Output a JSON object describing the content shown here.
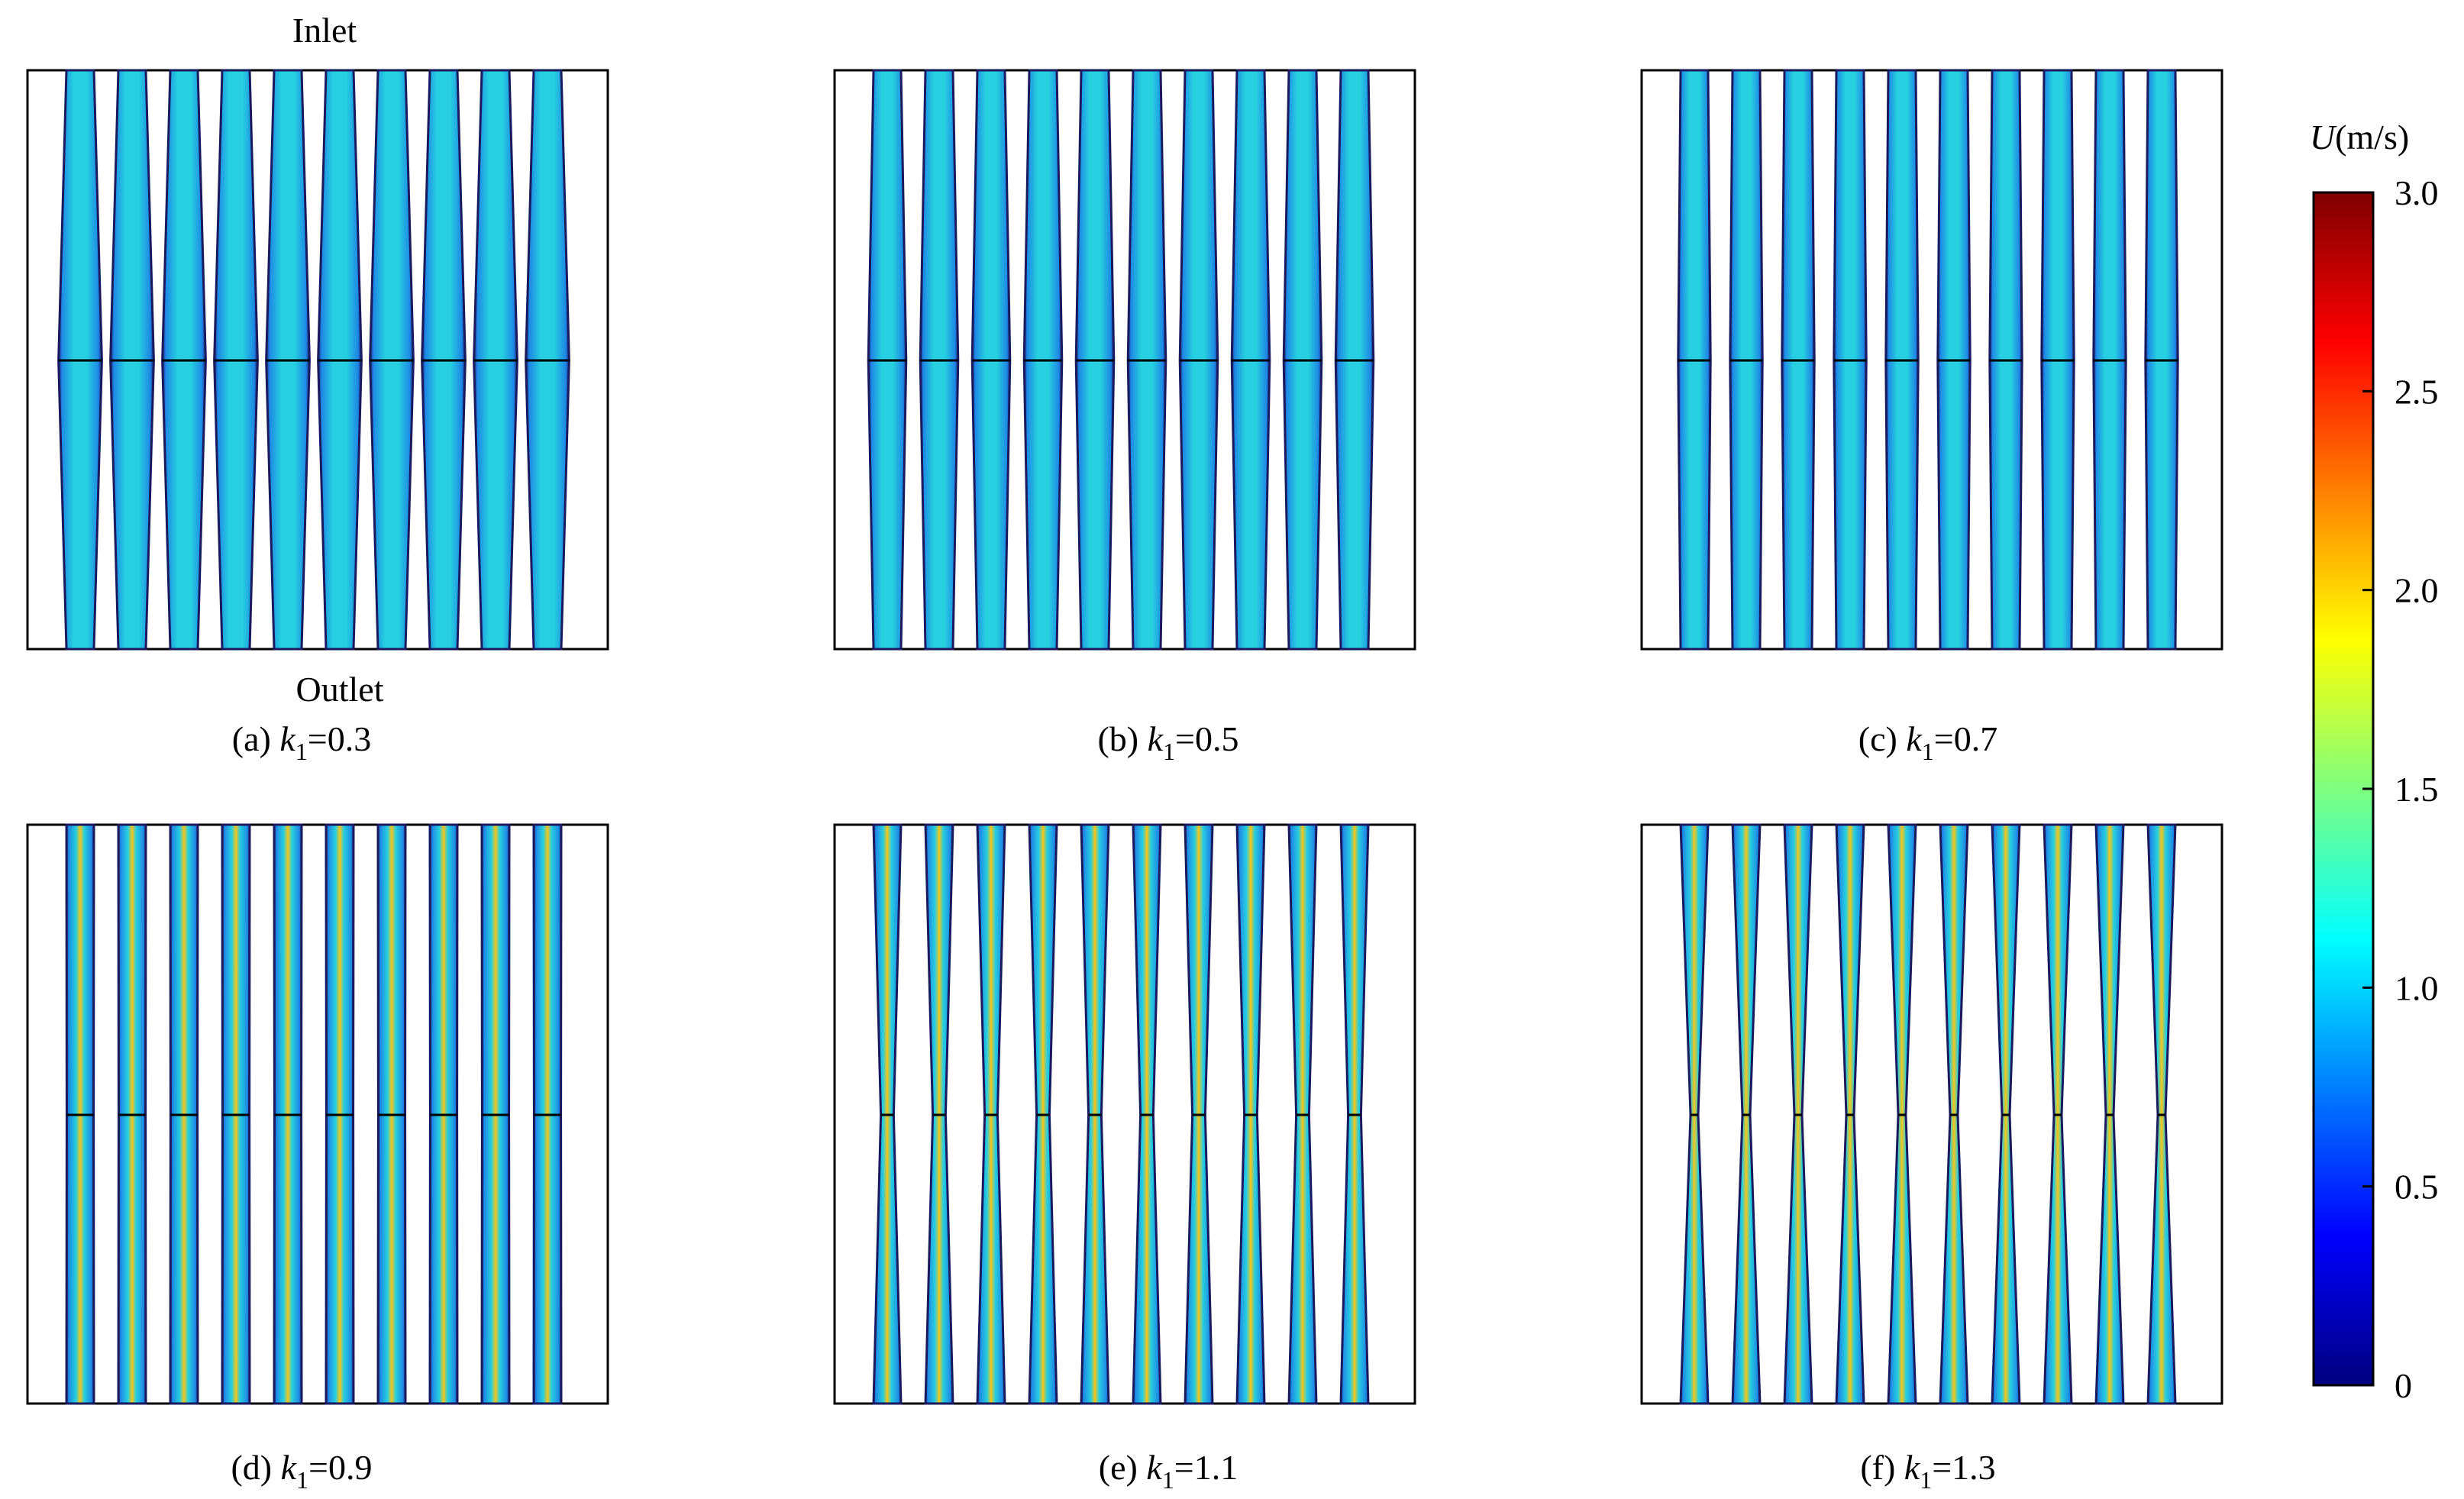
{
  "inlet_label": "Inlet",
  "outlet_label": "Outlet",
  "colorbar": {
    "var": "U",
    "unit": "(m/s)",
    "ticks": [
      "3.0",
      "2.5",
      "2.0",
      "1.5",
      "1.0",
      "0.5",
      "0"
    ],
    "range": [
      0,
      3.0
    ],
    "colormap": [
      "#00007f",
      "#0000ff",
      "#007fff",
      "#00ffff",
      "#7fff7f",
      "#ffff00",
      "#ff7f00",
      "#ff0000",
      "#7f0000"
    ]
  },
  "panels": [
    {
      "letter": "(a)",
      "value": "0.3",
      "k": 0.3
    },
    {
      "letter": "(b)",
      "value": "0.5",
      "k": 0.5
    },
    {
      "letter": "(c)",
      "value": "0.7",
      "k": 0.7
    },
    {
      "letter": "(d)",
      "value": "0.9",
      "k": 0.9
    },
    {
      "letter": "(e)",
      "value": "1.1",
      "k": 1.1
    },
    {
      "letter": "(f)",
      "value": "1.3",
      "k": 1.3
    }
  ],
  "channels_per_panel": 10,
  "colors": {
    "outline": "#1a1a5e",
    "mid_line": "#000000",
    "frame": "#000000",
    "channel_low": "#1e88e5",
    "channel_mid": "#26d0e0",
    "channel_high": "#f5c518"
  }
}
